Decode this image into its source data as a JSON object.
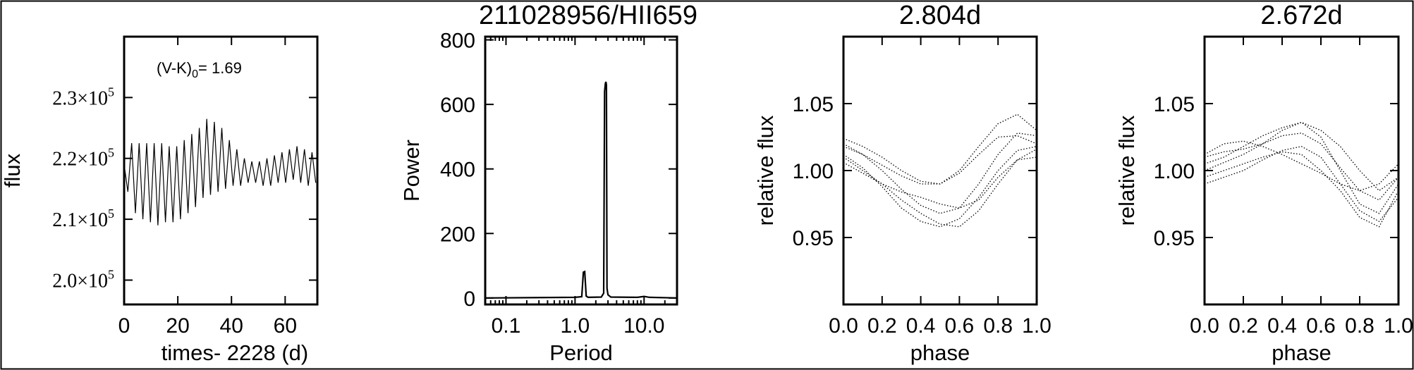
{
  "chart_data": [
    {
      "type": "line",
      "xlabel": "times- 2228 (d)",
      "ylabel": "flux",
      "annotation": {
        "text": "(V-K)",
        "sub": "0",
        "rest": "= 1.69"
      },
      "xlim": [
        0,
        72
      ],
      "ylim": [
        196000,
        240000
      ],
      "xticks": [
        0,
        20,
        40,
        60
      ],
      "yticks": [
        {
          "value": 200000,
          "mant": "2.0×10",
          "exp": "5"
        },
        {
          "value": 210000,
          "mant": "2.1×10",
          "exp": "5"
        },
        {
          "value": 220000,
          "mant": "2.2×10",
          "exp": "5"
        },
        {
          "value": 230000,
          "mant": "2.3×10",
          "exp": "5"
        }
      ],
      "series": [
        {
          "x": [
            0,
            1.4,
            2.8,
            4.2,
            5.6,
            7.0,
            8.4,
            9.8,
            11.2,
            12.6,
            14.0,
            15.4,
            16.8,
            18.2,
            19.6,
            21.0,
            22.4,
            23.8,
            25.2,
            26.6,
            28.0,
            29.4,
            30.8,
            32.2,
            33.6,
            35.0,
            36.4,
            37.8,
            39.2,
            40.6,
            42.0,
            43.4,
            44.8,
            46.2,
            47.6,
            49.0,
            50.4,
            51.8,
            53.2,
            54.6,
            56.0,
            57.4,
            58.8,
            60.2,
            61.6,
            63.0,
            64.4,
            65.8,
            67.2,
            68.6,
            70.0,
            71.4
          ],
          "y": [
            219000,
            214500,
            222500,
            211000,
            222500,
            210000,
            222500,
            209500,
            222500,
            209000,
            222500,
            209500,
            222000,
            209500,
            222000,
            210000,
            223000,
            211000,
            224000,
            212000,
            225000,
            213500,
            226500,
            214000,
            226000,
            214500,
            225000,
            215000,
            223000,
            215500,
            221500,
            215500,
            220000,
            216000,
            219500,
            216000,
            219500,
            215500,
            220000,
            215500,
            220500,
            216000,
            221000,
            216000,
            221500,
            216500,
            222000,
            216000,
            221500,
            215500,
            221000,
            216000
          ]
        }
      ]
    },
    {
      "type": "line",
      "title": "211028956/HII659",
      "xlabel": "Period",
      "ylabel": "Power",
      "xscale": "log",
      "xlim": [
        0.05,
        30
      ],
      "ylim": [
        -20,
        810
      ],
      "xticks": [
        {
          "value": 0.1,
          "label": "0.1"
        },
        {
          "value": 1.0,
          "label": "1.0"
        },
        {
          "value": 10.0,
          "label": "10.0"
        }
      ],
      "yticks": [
        0,
        200,
        400,
        600,
        800
      ],
      "series": [
        {
          "x": [
            0.05,
            1.0,
            1.25,
            1.32,
            1.38,
            1.45,
            1.55,
            2.4,
            2.6,
            2.68,
            2.75,
            2.8,
            2.85,
            2.9,
            3.0,
            3.3,
            8,
            10,
            12,
            30
          ],
          "y": [
            0,
            2,
            4,
            80,
            82,
            6,
            2,
            3,
            15,
            640,
            665,
            670,
            660,
            30,
            10,
            3,
            2,
            5,
            2,
            0
          ]
        }
      ]
    },
    {
      "type": "scatter",
      "title": "2.804d",
      "xlabel": "phase",
      "ylabel": "relative flux",
      "xlim": [
        0.0,
        1.0
      ],
      "ylim": [
        0.9,
        1.1
      ],
      "xticks": [
        {
          "value": 0.0,
          "label": "0.0"
        },
        {
          "value": 0.2,
          "label": "0.2"
        },
        {
          "value": 0.4,
          "label": "0.4"
        },
        {
          "value": 0.6,
          "label": "0.6"
        },
        {
          "value": 0.8,
          "label": "0.8"
        },
        {
          "value": 1.0,
          "label": "1.0"
        }
      ],
      "yticks": [
        {
          "value": 0.95,
          "label": "0.95"
        },
        {
          "value": 1.0,
          "label": "1.00"
        },
        {
          "value": 1.05,
          "label": "1.05"
        }
      ],
      "series": [
        {
          "x": [
            0.0,
            0.1,
            0.2,
            0.3,
            0.4,
            0.5,
            0.6,
            0.7,
            0.8,
            0.9,
            1.0
          ],
          "y": [
            1.018,
            1.012,
            1.004,
            0.996,
            0.99,
            0.99,
            0.998,
            1.012,
            1.025,
            1.026,
            1.02
          ]
        },
        {
          "x": [
            0.0,
            0.1,
            0.2,
            0.3,
            0.4,
            0.5,
            0.6,
            0.7,
            0.8,
            0.9,
            1.0
          ],
          "y": [
            1.024,
            1.018,
            1.01,
            1.0,
            0.992,
            0.99,
            1.0,
            1.018,
            1.035,
            1.042,
            1.03
          ]
        },
        {
          "x": [
            0.0,
            0.1,
            0.2,
            0.3,
            0.4,
            0.5,
            0.6,
            0.7,
            0.8,
            0.9,
            1.0
          ],
          "y": [
            1.012,
            1.002,
            0.988,
            0.972,
            0.962,
            0.958,
            0.964,
            0.98,
            1.0,
            1.015,
            1.018
          ]
        },
        {
          "x": [
            0.0,
            0.1,
            0.2,
            0.3,
            0.4,
            0.5,
            0.6,
            0.7,
            0.8,
            0.9,
            1.0
          ],
          "y": [
            1.01,
            1.0,
            0.99,
            0.978,
            0.968,
            0.96,
            0.958,
            0.97,
            0.99,
            1.008,
            1.016
          ]
        },
        {
          "x": [
            0.0,
            0.1,
            0.2,
            0.3,
            0.4,
            0.5,
            0.6,
            0.7,
            0.8,
            0.9,
            1.0
          ],
          "y": [
            1.02,
            1.012,
            1.0,
            0.986,
            0.974,
            0.968,
            0.972,
            0.99,
            1.012,
            1.028,
            1.026
          ]
        },
        {
          "x": [
            0.0,
            0.1,
            0.2,
            0.3,
            0.4,
            0.5,
            0.6,
            0.7,
            0.8,
            0.9,
            1.0
          ],
          "y": [
            1.006,
            0.998,
            0.99,
            0.984,
            0.98,
            0.975,
            0.972,
            0.978,
            0.995,
            1.008,
            1.01
          ]
        }
      ]
    },
    {
      "type": "scatter",
      "title": "2.672d",
      "xlabel": "phase",
      "ylabel": "relative flux",
      "xlim": [
        0.0,
        1.0
      ],
      "ylim": [
        0.9,
        1.1
      ],
      "xticks": [
        {
          "value": 0.0,
          "label": "0.0"
        },
        {
          "value": 0.2,
          "label": "0.2"
        },
        {
          "value": 0.4,
          "label": "0.4"
        },
        {
          "value": 0.6,
          "label": "0.6"
        },
        {
          "value": 0.8,
          "label": "0.8"
        },
        {
          "value": 1.0,
          "label": "1.0"
        }
      ],
      "yticks": [
        {
          "value": 0.95,
          "label": "0.95"
        },
        {
          "value": 1.0,
          "label": "1.00"
        },
        {
          "value": 1.05,
          "label": "1.05"
        }
      ],
      "series": [
        {
          "x": [
            0.0,
            0.1,
            0.2,
            0.3,
            0.4,
            0.5,
            0.6,
            0.7,
            0.8,
            0.9,
            1.0
          ],
          "y": [
            1.0,
            1.006,
            1.012,
            1.02,
            1.03,
            1.036,
            1.025,
            1.0,
            0.975,
            0.968,
            0.99
          ]
        },
        {
          "x": [
            0.0,
            0.1,
            0.2,
            0.3,
            0.4,
            0.5,
            0.6,
            0.7,
            0.8,
            0.9,
            1.0
          ],
          "y": [
            1.01,
            1.014,
            1.016,
            1.02,
            1.026,
            1.028,
            1.02,
            1.002,
            0.985,
            0.978,
            0.995
          ]
        },
        {
          "x": [
            0.0,
            0.1,
            0.2,
            0.3,
            0.4,
            0.5,
            0.6,
            0.7,
            0.8,
            0.9,
            1.0
          ],
          "y": [
            0.995,
            1.0,
            1.005,
            1.01,
            1.014,
            1.012,
            1.0,
            0.985,
            0.965,
            0.958,
            0.985
          ]
        },
        {
          "x": [
            0.0,
            0.1,
            0.2,
            0.3,
            0.4,
            0.5,
            0.6,
            0.7,
            0.8,
            0.9,
            1.0
          ],
          "y": [
            1.012,
            1.02,
            1.022,
            1.018,
            1.012,
            1.005,
            0.998,
            0.99,
            0.985,
            0.99,
            1.005
          ]
        },
        {
          "x": [
            0.0,
            0.1,
            0.2,
            0.3,
            0.4,
            0.5,
            0.6,
            0.7,
            0.8,
            0.9,
            1.0
          ],
          "y": [
            1.005,
            1.01,
            1.018,
            1.026,
            1.032,
            1.036,
            1.03,
            1.018,
            1.0,
            0.985,
            0.995
          ]
        },
        {
          "x": [
            0.0,
            0.1,
            0.2,
            0.3,
            0.4,
            0.5,
            0.6,
            0.7,
            0.8,
            0.9,
            1.0
          ],
          "y": [
            0.99,
            0.995,
            1.0,
            1.008,
            1.015,
            1.018,
            1.01,
            0.99,
            0.97,
            0.962,
            0.98
          ]
        }
      ]
    }
  ]
}
